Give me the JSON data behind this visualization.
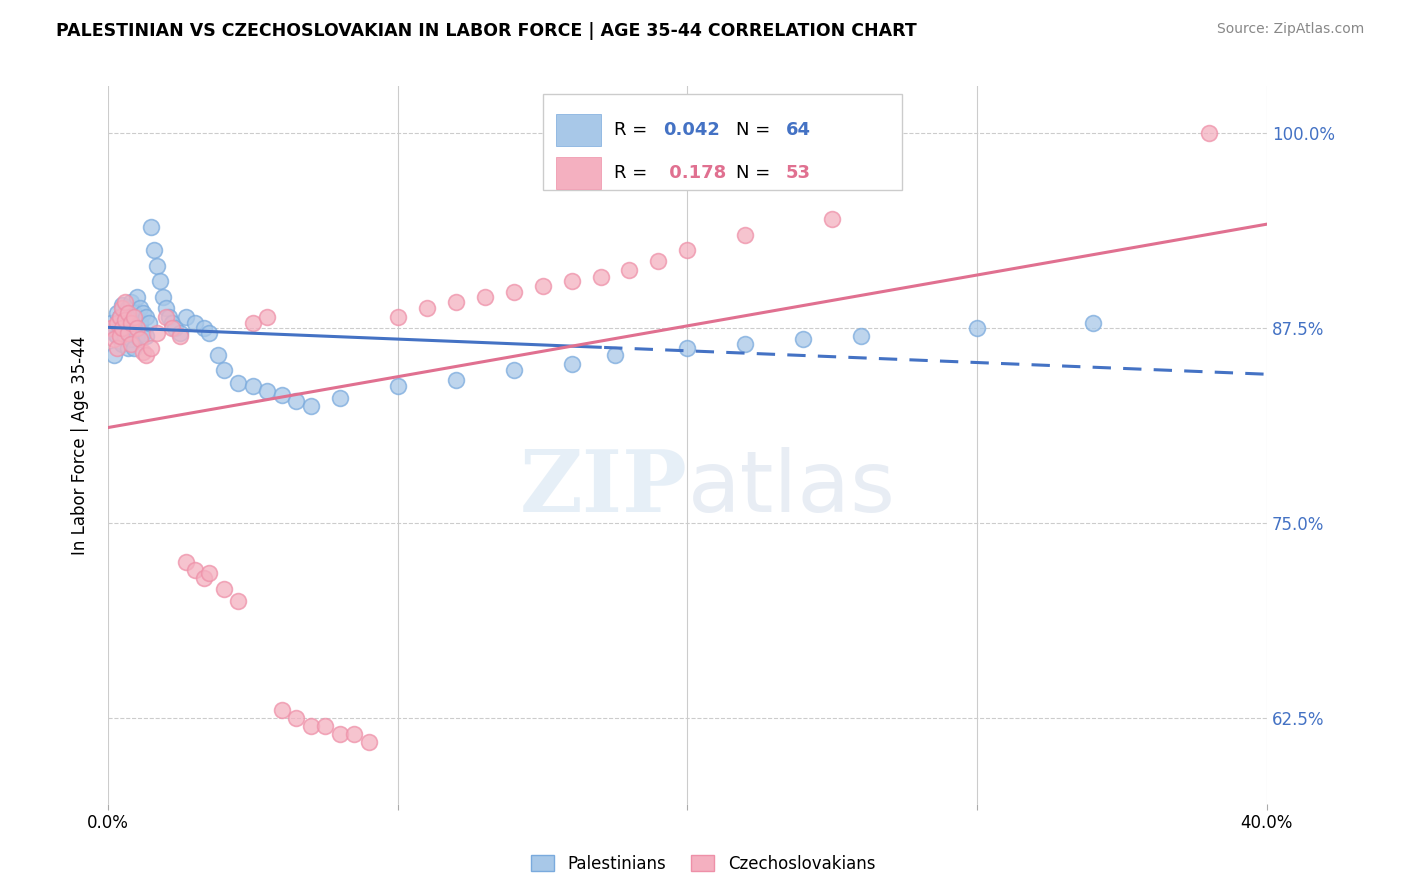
{
  "title": "PALESTINIAN VS CZECHOSLOVAKIAN IN LABOR FORCE | AGE 35-44 CORRELATION CHART",
  "source": "Source: ZipAtlas.com",
  "ylabel": "In Labor Force | Age 35-44",
  "xlim": [
    0.0,
    0.4
  ],
  "ylim": [
    0.57,
    1.03
  ],
  "yticks": [
    0.625,
    0.75,
    0.875,
    1.0
  ],
  "ytick_labels": [
    "62.5%",
    "75.0%",
    "87.5%",
    "100.0%"
  ],
  "xticks": [
    0.0,
    0.1,
    0.2,
    0.3,
    0.4
  ],
  "xtick_labels": [
    "0.0%",
    "",
    "",
    "",
    "40.0%"
  ],
  "watermark_zip": "ZIP",
  "watermark_atlas": "atlas",
  "legend_r1": "R = 0.042",
  "legend_n1": "N = 64",
  "legend_r2": "R =  0.178",
  "legend_n2": "N = 53",
  "blue_fill": "#a8c8e8",
  "pink_fill": "#f4b0c0",
  "blue_edge": "#7aaadd",
  "pink_edge": "#ee90a8",
  "blue_line": "#4472c4",
  "pink_line": "#e07090",
  "blue_text": "#4472c4",
  "pink_text": "#e07090",
  "blue_scatter": [
    [
      0.001,
      0.878
    ],
    [
      0.002,
      0.872
    ],
    [
      0.002,
      0.858
    ],
    [
      0.003,
      0.885
    ],
    [
      0.003,
      0.87
    ],
    [
      0.004,
      0.882
    ],
    [
      0.004,
      0.875
    ],
    [
      0.005,
      0.89
    ],
    [
      0.005,
      0.865
    ],
    [
      0.006,
      0.88
    ],
    [
      0.006,
      0.87
    ],
    [
      0.007,
      0.888
    ],
    [
      0.007,
      0.875
    ],
    [
      0.007,
      0.862
    ],
    [
      0.008,
      0.892
    ],
    [
      0.008,
      0.88
    ],
    [
      0.008,
      0.868
    ],
    [
      0.009,
      0.885
    ],
    [
      0.009,
      0.875
    ],
    [
      0.009,
      0.862
    ],
    [
      0.01,
      0.895
    ],
    [
      0.01,
      0.882
    ],
    [
      0.01,
      0.87
    ],
    [
      0.011,
      0.888
    ],
    [
      0.011,
      0.878
    ],
    [
      0.012,
      0.885
    ],
    [
      0.012,
      0.872
    ],
    [
      0.013,
      0.882
    ],
    [
      0.013,
      0.87
    ],
    [
      0.014,
      0.878
    ],
    [
      0.015,
      0.94
    ],
    [
      0.016,
      0.925
    ],
    [
      0.017,
      0.915
    ],
    [
      0.018,
      0.905
    ],
    [
      0.019,
      0.895
    ],
    [
      0.02,
      0.888
    ],
    [
      0.021,
      0.882
    ],
    [
      0.022,
      0.878
    ],
    [
      0.023,
      0.875
    ],
    [
      0.025,
      0.872
    ],
    [
      0.027,
      0.882
    ],
    [
      0.03,
      0.878
    ],
    [
      0.033,
      0.875
    ],
    [
      0.035,
      0.872
    ],
    [
      0.038,
      0.858
    ],
    [
      0.04,
      0.848
    ],
    [
      0.045,
      0.84
    ],
    [
      0.05,
      0.838
    ],
    [
      0.055,
      0.835
    ],
    [
      0.06,
      0.832
    ],
    [
      0.065,
      0.828
    ],
    [
      0.07,
      0.825
    ],
    [
      0.08,
      0.83
    ],
    [
      0.1,
      0.838
    ],
    [
      0.12,
      0.842
    ],
    [
      0.14,
      0.848
    ],
    [
      0.16,
      0.852
    ],
    [
      0.175,
      0.858
    ],
    [
      0.2,
      0.862
    ],
    [
      0.22,
      0.865
    ],
    [
      0.24,
      0.868
    ],
    [
      0.26,
      0.87
    ],
    [
      0.3,
      0.875
    ],
    [
      0.34,
      0.878
    ]
  ],
  "pink_scatter": [
    [
      0.001,
      0.875
    ],
    [
      0.002,
      0.868
    ],
    [
      0.003,
      0.878
    ],
    [
      0.003,
      0.862
    ],
    [
      0.004,
      0.882
    ],
    [
      0.004,
      0.87
    ],
    [
      0.005,
      0.888
    ],
    [
      0.005,
      0.875
    ],
    [
      0.006,
      0.892
    ],
    [
      0.006,
      0.88
    ],
    [
      0.007,
      0.885
    ],
    [
      0.007,
      0.872
    ],
    [
      0.008,
      0.878
    ],
    [
      0.008,
      0.865
    ],
    [
      0.009,
      0.882
    ],
    [
      0.01,
      0.875
    ],
    [
      0.011,
      0.868
    ],
    [
      0.012,
      0.86
    ],
    [
      0.013,
      0.858
    ],
    [
      0.015,
      0.862
    ],
    [
      0.017,
      0.872
    ],
    [
      0.02,
      0.882
    ],
    [
      0.022,
      0.875
    ],
    [
      0.025,
      0.87
    ],
    [
      0.027,
      0.725
    ],
    [
      0.03,
      0.72
    ],
    [
      0.033,
      0.715
    ],
    [
      0.035,
      0.718
    ],
    [
      0.04,
      0.708
    ],
    [
      0.045,
      0.7
    ],
    [
      0.05,
      0.878
    ],
    [
      0.055,
      0.882
    ],
    [
      0.06,
      0.63
    ],
    [
      0.065,
      0.625
    ],
    [
      0.07,
      0.62
    ],
    [
      0.075,
      0.62
    ],
    [
      0.08,
      0.615
    ],
    [
      0.085,
      0.615
    ],
    [
      0.09,
      0.61
    ],
    [
      0.1,
      0.882
    ],
    [
      0.11,
      0.888
    ],
    [
      0.12,
      0.892
    ],
    [
      0.13,
      0.895
    ],
    [
      0.14,
      0.898
    ],
    [
      0.15,
      0.902
    ],
    [
      0.16,
      0.905
    ],
    [
      0.17,
      0.908
    ],
    [
      0.18,
      0.912
    ],
    [
      0.19,
      0.918
    ],
    [
      0.2,
      0.925
    ],
    [
      0.22,
      0.935
    ],
    [
      0.25,
      0.945
    ],
    [
      0.38,
      1.0
    ]
  ]
}
